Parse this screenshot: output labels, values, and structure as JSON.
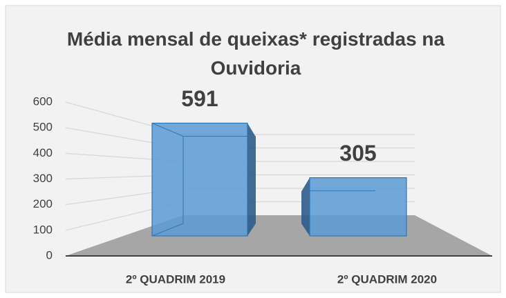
{
  "chart_data": {
    "type": "bar3d",
    "title": "Média mensal de queixas* registradas na Ouvidoria",
    "categories": [
      "2º QUADRIM 2019",
      "2º QUADRIM 2020"
    ],
    "values": [
      591,
      305
    ],
    "color": "#5b9bd5",
    "ylim": [
      0,
      600
    ],
    "yticks": [
      0,
      100,
      200,
      300,
      400,
      500,
      600
    ],
    "grid": true
  }
}
